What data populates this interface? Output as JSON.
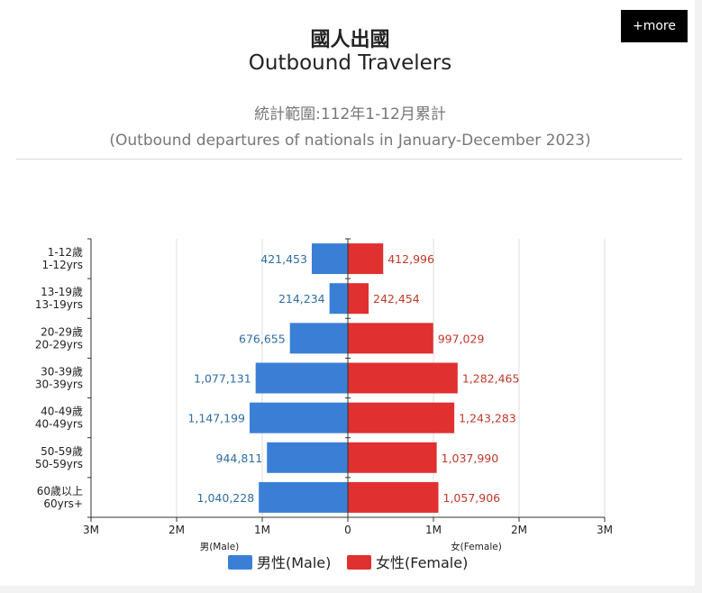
{
  "header": {
    "more_label": "+more",
    "title_zh": "國人出國",
    "title_en": "Outbound Travelers",
    "subtitle_zh": "統計範圍:112年1-12月累計",
    "subtitle_en": "(Outbound departures of nationals in January-December 2023)"
  },
  "colors": {
    "male": "#3a7fd5",
    "female": "#e03030",
    "male_label": "#2e6da4",
    "female_label": "#c0392b"
  },
  "chart_data": {
    "type": "bar",
    "orientation": "horizontal-diverging",
    "categories": [
      [
        "1-12歲",
        "1-12yrs"
      ],
      [
        "13-19歲",
        "13-19yrs"
      ],
      [
        "20-29歲",
        "20-29yrs"
      ],
      [
        "30-39歲",
        "30-39yrs"
      ],
      [
        "40-49歲",
        "40-49yrs"
      ],
      [
        "50-59歲",
        "50-59yrs"
      ],
      [
        "60歲以上",
        "60yrs+"
      ]
    ],
    "series": [
      {
        "name": "男性(Male)",
        "values": [
          421453,
          214234,
          676655,
          1077131,
          1147199,
          944811,
          1040228
        ],
        "value_labels": [
          "421,453",
          "214,234",
          "676,655",
          "1,077,131",
          "1,147,199",
          "944,811",
          "1,040,228"
        ]
      },
      {
        "name": "女性(Female)",
        "values": [
          412996,
          242454,
          997029,
          1282465,
          1243283,
          1037990,
          1057906
        ],
        "value_labels": [
          "412,996",
          "242,454",
          "997,029",
          "1,282,465",
          "1,243,283",
          "1,037,990",
          "1,057,906"
        ]
      }
    ],
    "xlim": [
      -3000000,
      3000000
    ],
    "ticks": [
      -3000000,
      -2000000,
      -1000000,
      0,
      1000000,
      2000000,
      3000000
    ],
    "tick_labels": [
      "3M",
      "2M",
      "1M",
      "0",
      "1M",
      "2M",
      "3M"
    ],
    "xlabel_left": "男(Male)",
    "xlabel_right": "女(Female)",
    "grid": true,
    "legend": "bottom-center"
  }
}
